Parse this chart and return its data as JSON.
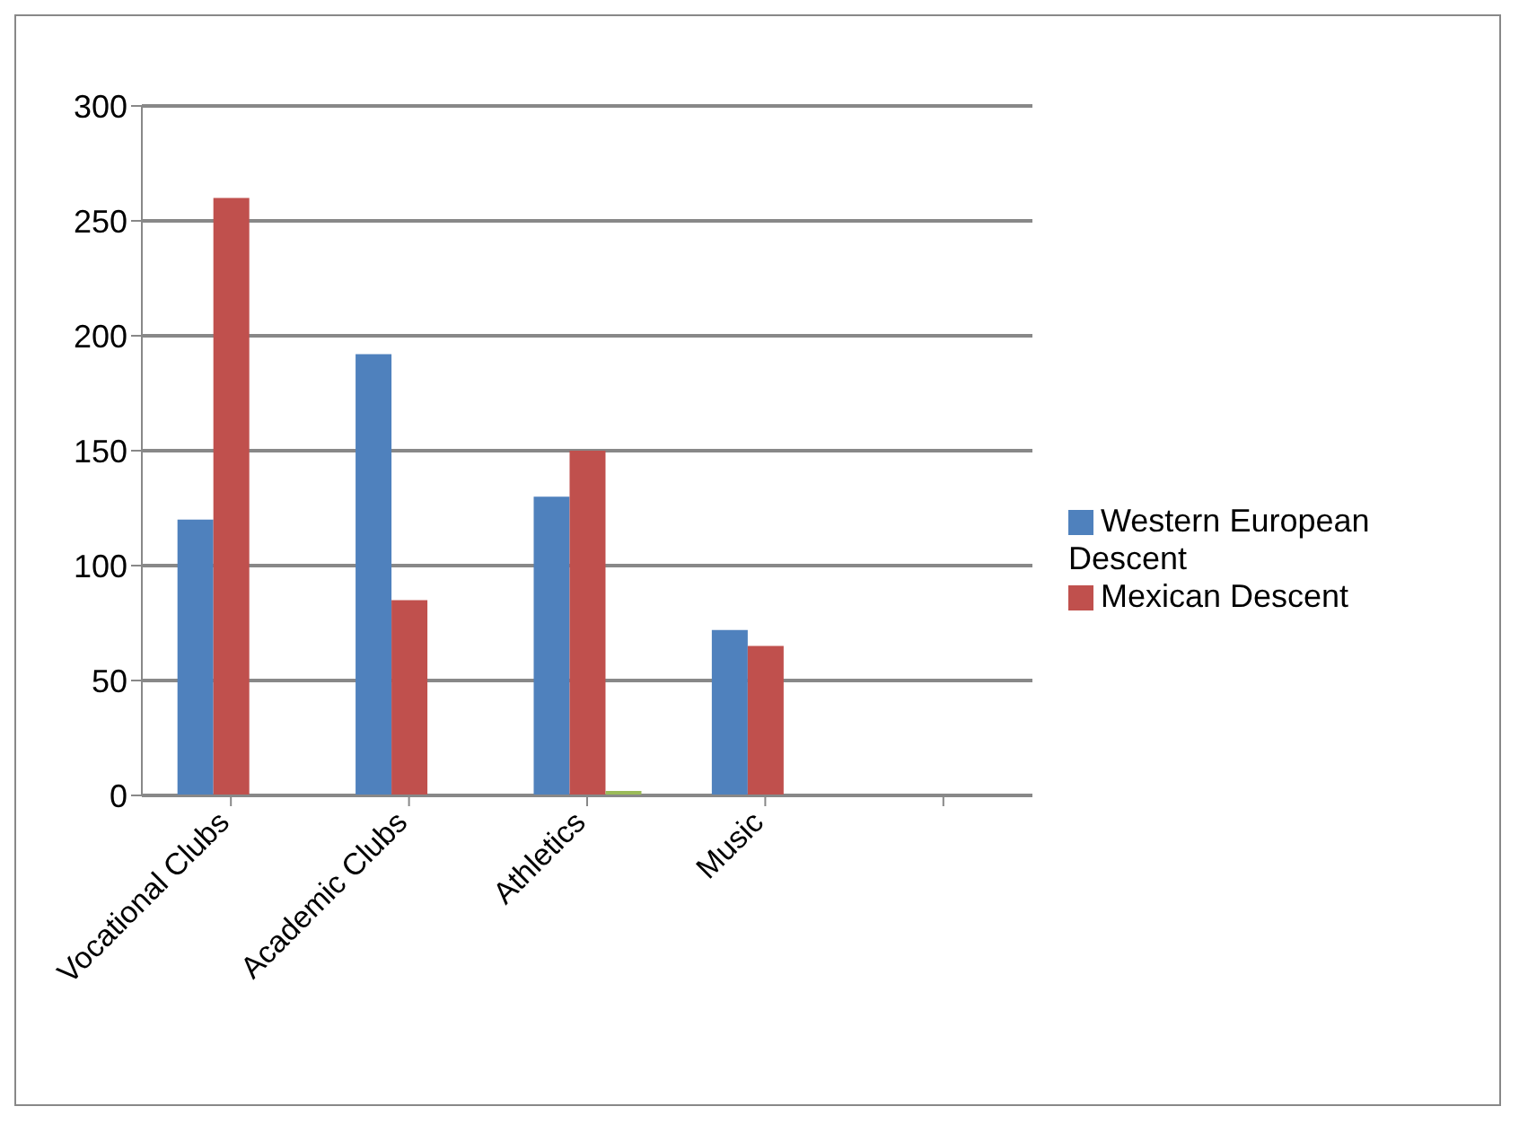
{
  "chart_data": {
    "type": "bar",
    "categories": [
      "Vocational Clubs",
      "Academic Clubs",
      "Athletics",
      "Music",
      null
    ],
    "series": [
      {
        "name": "Western European Descent",
        "color": "#4f81bd",
        "values": [
          120,
          192,
          130,
          72,
          null
        ]
      },
      {
        "name": "Mexican Descent",
        "color": "#c0504d",
        "values": [
          260,
          85,
          150,
          65,
          null
        ]
      },
      {
        "color": "#9bbb59",
        "values": [
          null,
          null,
          2,
          null,
          null
        ]
      }
    ],
    "ylim": [
      0,
      300
    ],
    "yticks": [
      0,
      50,
      100,
      150,
      200,
      250,
      300
    ],
    "grid": "y",
    "legend": "right"
  }
}
